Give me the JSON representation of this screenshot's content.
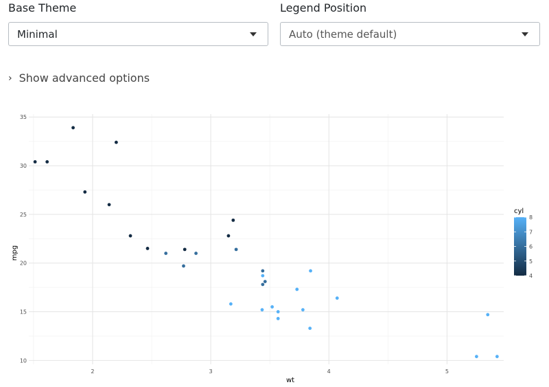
{
  "controls": {
    "base_theme": {
      "label": "Base Theme",
      "value": "Minimal"
    },
    "legend_position": {
      "label": "Legend Position",
      "value": "Auto (theme default)"
    },
    "advanced_toggle": "Show advanced options"
  },
  "chart_data": {
    "type": "scatter",
    "xlabel": "wt",
    "ylabel": "mpg",
    "xlim": [
      1.46,
      5.48
    ],
    "ylim": [
      9.6,
      35.3
    ],
    "x_ticks": [
      2,
      3,
      4,
      5
    ],
    "y_ticks": [
      10,
      15,
      20,
      25,
      30,
      35
    ],
    "grid": true,
    "legend": {
      "title": "cyl",
      "position": "right",
      "type": "continuous",
      "ticks": [
        4,
        5,
        6,
        7,
        8
      ],
      "colors": {
        "low": "#132B43",
        "high": "#56B1F7"
      }
    },
    "points": [
      {
        "x": 2.62,
        "y": 21.0,
        "cyl": 6
      },
      {
        "x": 2.875,
        "y": 21.0,
        "cyl": 6
      },
      {
        "x": 2.32,
        "y": 22.8,
        "cyl": 4
      },
      {
        "x": 3.215,
        "y": 21.4,
        "cyl": 6
      },
      {
        "x": 3.44,
        "y": 18.7,
        "cyl": 8
      },
      {
        "x": 3.46,
        "y": 18.1,
        "cyl": 6
      },
      {
        "x": 3.57,
        "y": 14.3,
        "cyl": 8
      },
      {
        "x": 3.19,
        "y": 24.4,
        "cyl": 4
      },
      {
        "x": 3.15,
        "y": 22.8,
        "cyl": 4
      },
      {
        "x": 3.44,
        "y": 19.2,
        "cyl": 6
      },
      {
        "x": 3.44,
        "y": 17.8,
        "cyl": 6
      },
      {
        "x": 4.07,
        "y": 16.4,
        "cyl": 8
      },
      {
        "x": 3.73,
        "y": 17.3,
        "cyl": 8
      },
      {
        "x": 3.78,
        "y": 15.2,
        "cyl": 8
      },
      {
        "x": 5.25,
        "y": 10.4,
        "cyl": 8
      },
      {
        "x": 5.424,
        "y": 10.4,
        "cyl": 8
      },
      {
        "x": 5.345,
        "y": 14.7,
        "cyl": 8
      },
      {
        "x": 2.2,
        "y": 32.4,
        "cyl": 4
      },
      {
        "x": 1.615,
        "y": 30.4,
        "cyl": 4
      },
      {
        "x": 1.835,
        "y": 33.9,
        "cyl": 4
      },
      {
        "x": 2.465,
        "y": 21.5,
        "cyl": 4
      },
      {
        "x": 3.52,
        "y": 15.5,
        "cyl": 8
      },
      {
        "x": 3.435,
        "y": 15.2,
        "cyl": 8
      },
      {
        "x": 3.84,
        "y": 13.3,
        "cyl": 8
      },
      {
        "x": 3.845,
        "y": 19.2,
        "cyl": 8
      },
      {
        "x": 1.935,
        "y": 27.3,
        "cyl": 4
      },
      {
        "x": 2.14,
        "y": 26.0,
        "cyl": 4
      },
      {
        "x": 1.513,
        "y": 30.4,
        "cyl": 4
      },
      {
        "x": 3.17,
        "y": 15.8,
        "cyl": 8
      },
      {
        "x": 2.77,
        "y": 19.7,
        "cyl": 6
      },
      {
        "x": 3.57,
        "y": 15.0,
        "cyl": 8
      },
      {
        "x": 2.78,
        "y": 21.4,
        "cyl": 4
      }
    ]
  }
}
